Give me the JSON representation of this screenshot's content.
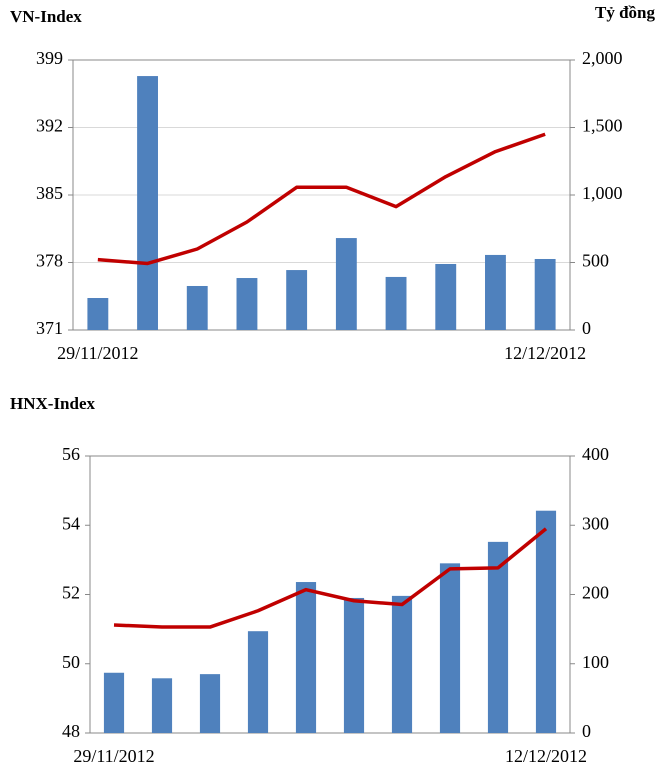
{
  "chart_data": [
    {
      "type": "combo",
      "title": "VN-Index",
      "y2_label": "Tỷ đồng",
      "categories": [
        "29/11/2012",
        null,
        null,
        null,
        null,
        null,
        null,
        null,
        null,
        "12/12/2012"
      ],
      "ylim": [
        371,
        399
      ],
      "yticks": [
        371,
        378,
        385,
        392,
        399
      ],
      "y2lim": [
        0,
        2000
      ],
      "y2ticks": [
        0,
        500,
        {
          "value": 1000,
          "label": "1,000"
        },
        {
          "value": 1500,
          "label": "1,500"
        },
        {
          "value": 2000,
          "label": "2,000"
        }
      ],
      "grid": true,
      "series": [
        {
          "type": "bar",
          "axis": "y2",
          "color": "#4f81bd",
          "values": [
            237,
            1881,
            326,
            385,
            444,
            681,
            393,
            489,
            556,
            526
          ]
        },
        {
          "type": "line",
          "color": "#c00000",
          "values": [
            378.3,
            377.9,
            379.4,
            382.2,
            385.8,
            385.8,
            383.8,
            386.9,
            389.5,
            391.3
          ]
        }
      ]
    },
    {
      "type": "combo",
      "title": "HNX-Index",
      "categories": [
        "29/11/2012",
        null,
        null,
        null,
        null,
        null,
        null,
        null,
        null,
        "12/12/2012"
      ],
      "ylim": [
        48,
        56
      ],
      "yticks": [
        48,
        50,
        52,
        54,
        56
      ],
      "y2lim": [
        0,
        400
      ],
      "y2ticks": [
        0,
        100,
        200,
        300,
        400
      ],
      "grid": false,
      "series": [
        {
          "type": "bar",
          "axis": "y2",
          "color": "#4f81bd",
          "values": [
            87,
            79,
            85,
            147,
            218,
            195,
            198,
            245,
            276,
            321
          ]
        },
        {
          "type": "line",
          "color": "#c00000",
          "values": [
            51.12,
            51.06,
            51.06,
            51.53,
            52.14,
            51.82,
            51.71,
            52.74,
            52.77,
            53.9
          ]
        }
      ]
    }
  ]
}
